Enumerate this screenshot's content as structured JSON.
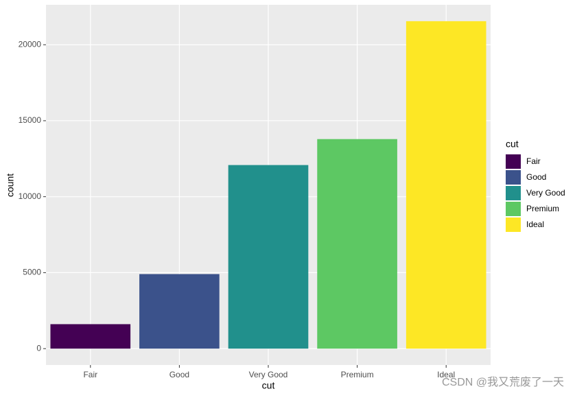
{
  "chart_data": {
    "type": "bar",
    "x_label": "cut",
    "y_label": "count",
    "categories": [
      "Fair",
      "Good",
      "Very Good",
      "Premium",
      "Ideal"
    ],
    "values": [
      1610,
      4906,
      12082,
      13791,
      21551
    ],
    "colors": [
      "#440154",
      "#3b528b",
      "#21908c",
      "#5dc863",
      "#fde725"
    ],
    "ylim": [
      -1078,
      22629
    ],
    "yticks": [
      0,
      5000,
      10000,
      15000,
      20000
    ],
    "grid": true,
    "legend_title": "cut"
  },
  "watermark": "CSDN @我又荒废了一天"
}
